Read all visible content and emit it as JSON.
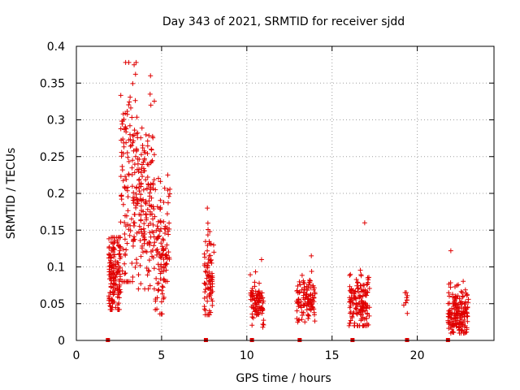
{
  "chart_data": {
    "type": "scatter",
    "title": "Day 343 of 2021, SRMTID for receiver sjdd",
    "xlabel": "GPS time / hours",
    "ylabel": "SRMTID / TECUs",
    "xlim": [
      0,
      24.5
    ],
    "ylim": [
      0,
      0.4
    ],
    "x_ticks": [
      0,
      5,
      10,
      15,
      20
    ],
    "x_tick_labels": [
      "0",
      "5",
      "10",
      "15",
      "20"
    ],
    "y_ticks": [
      0,
      0.05,
      0.1,
      0.15,
      0.2,
      0.25,
      0.3,
      0.35,
      0.4
    ],
    "y_tick_labels": [
      "0",
      "0.05",
      "0.1",
      "0.15",
      "0.2",
      "0.25",
      "0.3",
      "0.35",
      "0.4"
    ],
    "grid": true,
    "marker": "+",
    "color": "#e00000",
    "zero_line_markers_x": [
      1.85,
      7.6,
      10.3,
      13.1,
      16.2,
      19.4,
      21.8
    ],
    "clusters": [
      {
        "x_range": [
          1.9,
          2.6
        ],
        "n": 160,
        "y_center": 0.09,
        "y_spread": 0.03,
        "y_min": 0.042,
        "y_max": 0.14
      },
      {
        "x_range": [
          2.6,
          3.6
        ],
        "n": 150,
        "y_center": 0.2,
        "y_spread": 0.08,
        "y_min": 0.08,
        "y_max": 0.378
      },
      {
        "x_range": [
          3.6,
          4.6
        ],
        "n": 150,
        "y_center": 0.19,
        "y_spread": 0.06,
        "y_min": 0.07,
        "y_max": 0.36
      },
      {
        "x_range": [
          4.6,
          5.5
        ],
        "n": 110,
        "y_center": 0.12,
        "y_spread": 0.04,
        "y_min": 0.036,
        "y_max": 0.225
      },
      {
        "x_range": [
          7.5,
          8.1
        ],
        "n": 80,
        "y_center": 0.09,
        "y_spread": 0.03,
        "y_min": 0.035,
        "y_max": 0.18
      },
      {
        "x_range": [
          10.2,
          11.0
        ],
        "n": 90,
        "y_center": 0.05,
        "y_spread": 0.015,
        "y_min": 0.018,
        "y_max": 0.11
      },
      {
        "x_range": [
          12.9,
          14.0
        ],
        "n": 110,
        "y_center": 0.056,
        "y_spread": 0.015,
        "y_min": 0.025,
        "y_max": 0.115
      },
      {
        "x_range": [
          16.0,
          17.2
        ],
        "n": 150,
        "y_center": 0.05,
        "y_spread": 0.02,
        "y_min": 0.02,
        "y_max": 0.16
      },
      {
        "x_range": [
          19.2,
          19.5
        ],
        "n": 10,
        "y_center": 0.05,
        "y_spread": 0.01,
        "y_min": 0.018,
        "y_max": 0.065
      },
      {
        "x_range": [
          21.8,
          23.0
        ],
        "n": 170,
        "y_center": 0.04,
        "y_spread": 0.018,
        "y_min": 0.01,
        "y_max": 0.122
      }
    ]
  }
}
